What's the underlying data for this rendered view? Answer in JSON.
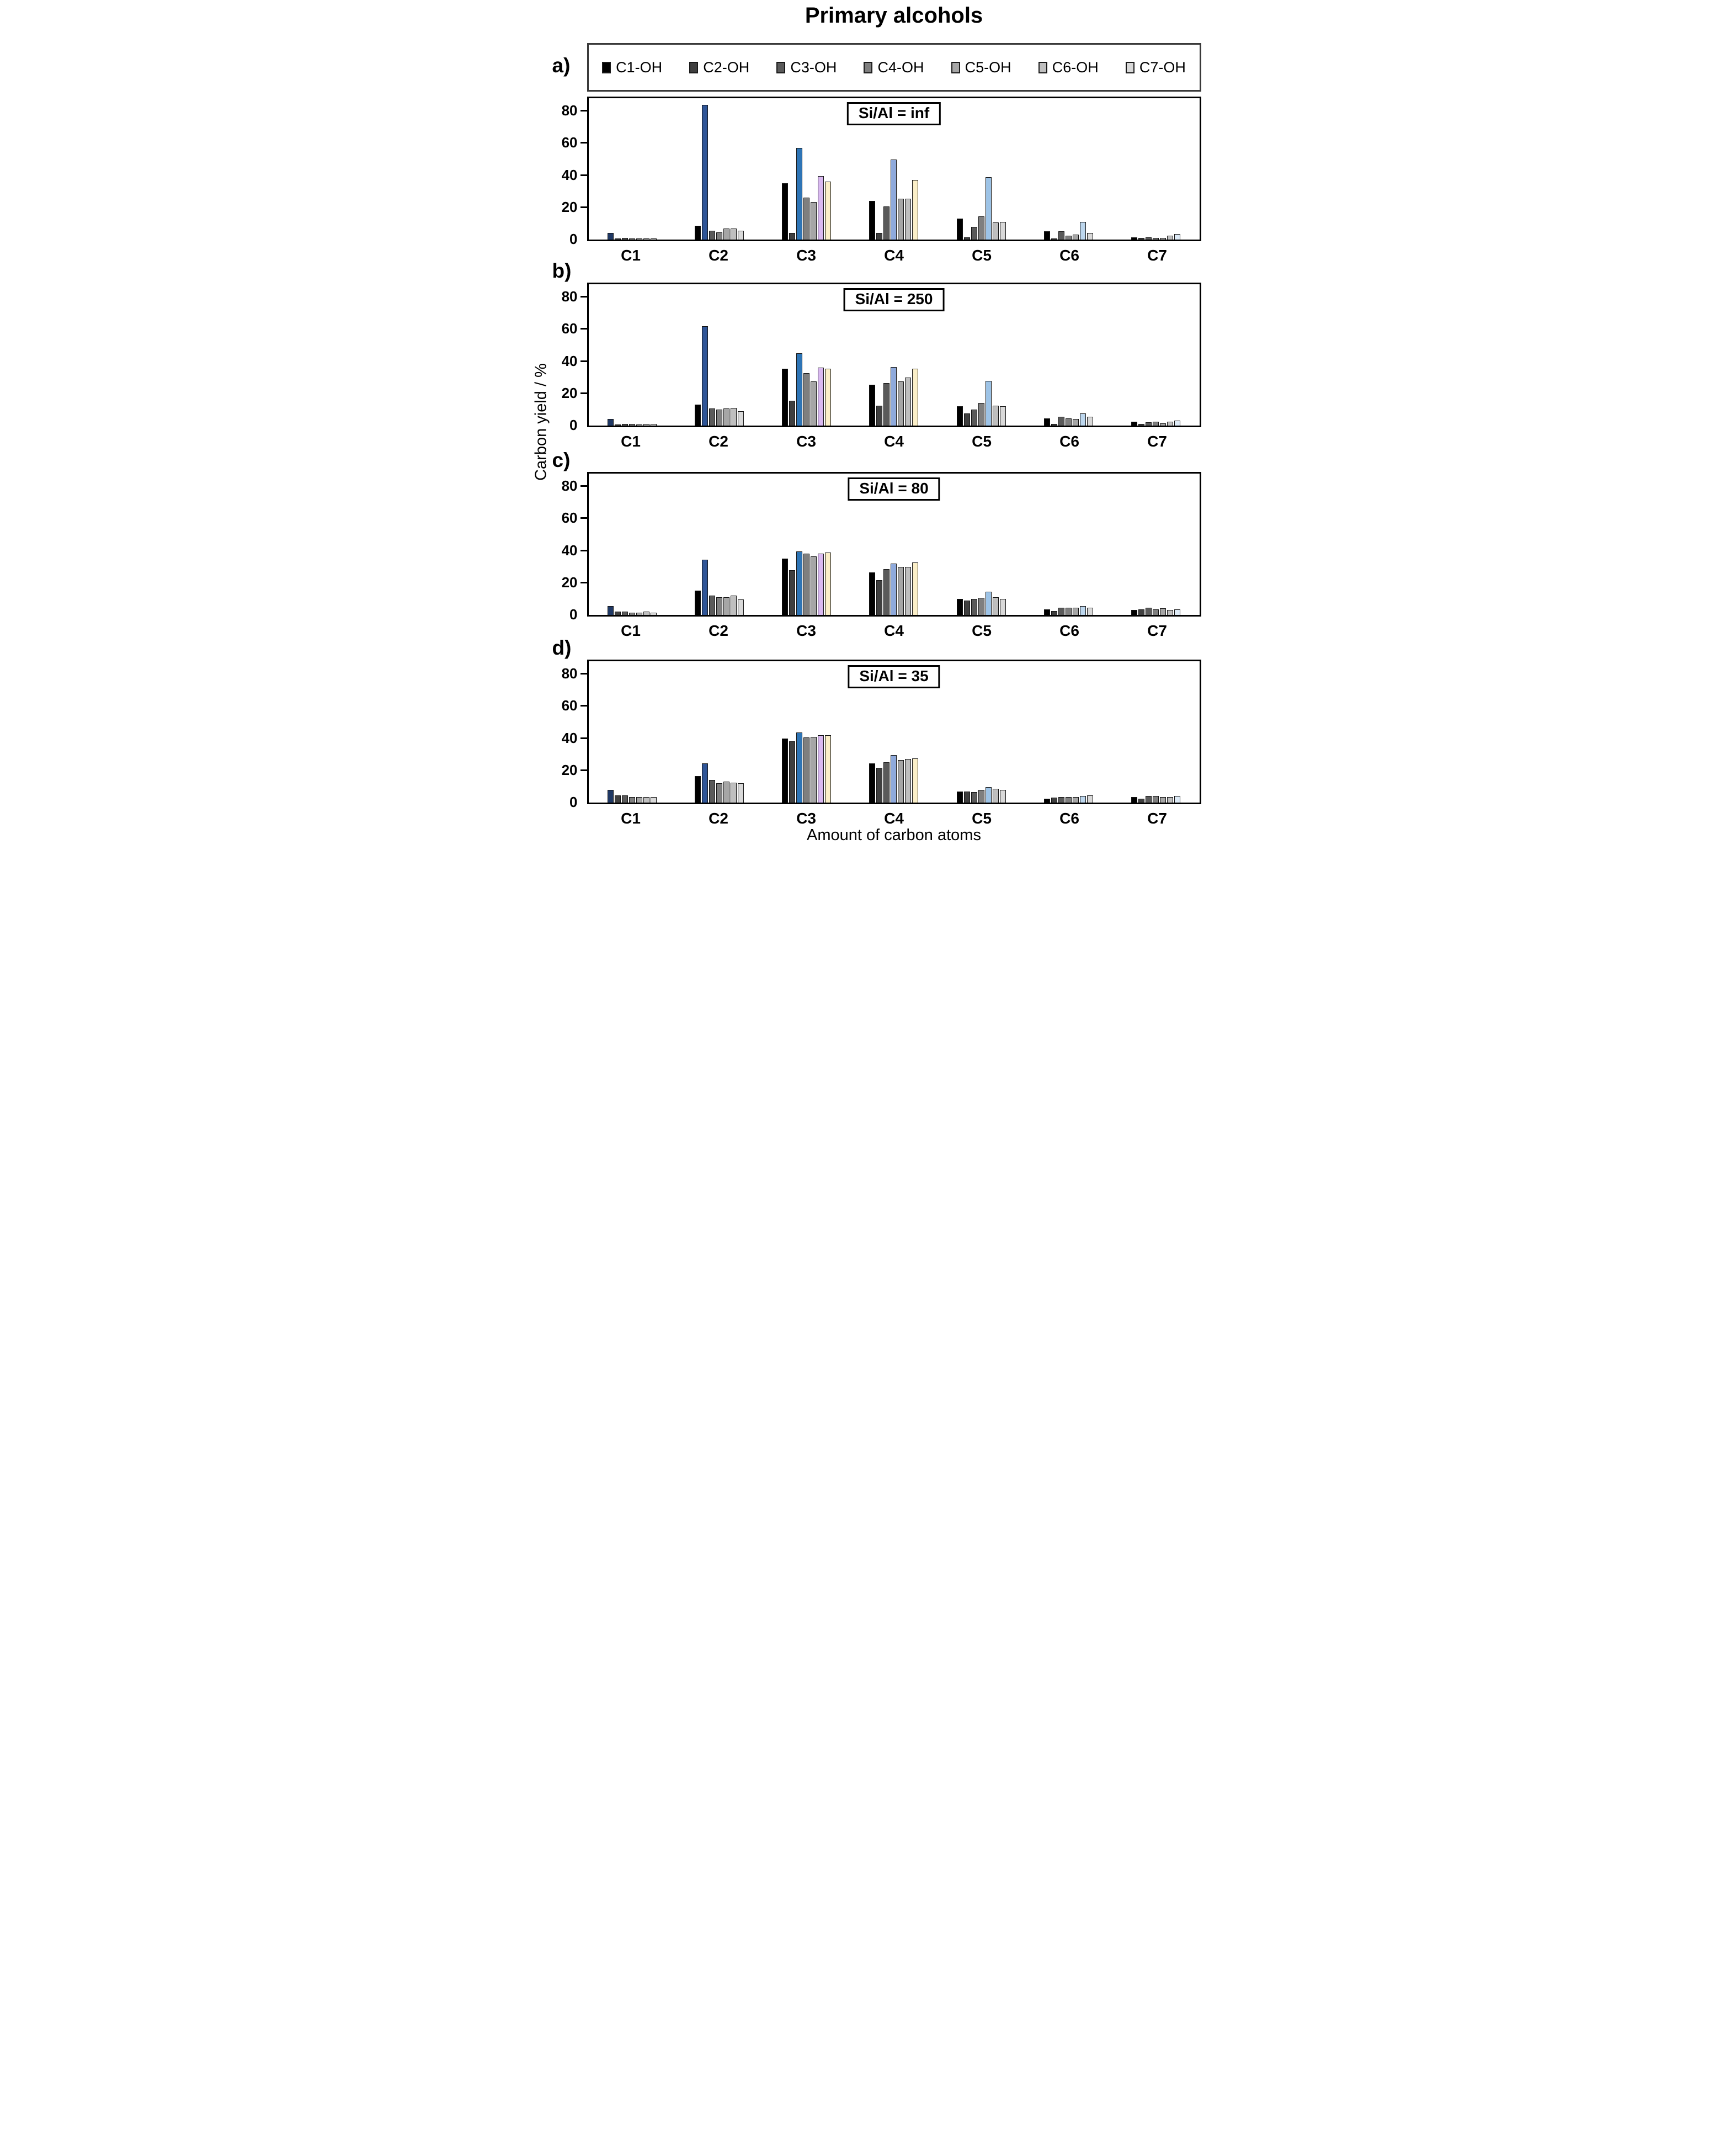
{
  "figure": {
    "title": "Primary alcohols",
    "x_axis_label": "Amount of carbon atoms",
    "y_axis_label": "Carbon yield / %"
  },
  "legend": {
    "entries": [
      {
        "label": "C1-OH",
        "color": "#000000"
      },
      {
        "label": "C2-OH",
        "color": "#3f3f3f"
      },
      {
        "label": "C3-OH",
        "color": "#5a5a5a"
      },
      {
        "label": "C4-OH",
        "color": "#7f7f7f"
      },
      {
        "label": "C5-OH",
        "color": "#a6a6a6"
      },
      {
        "label": "C6-OH",
        "color": "#bfbfbf"
      },
      {
        "label": "C7-OH",
        "color": "#d9d9d9"
      }
    ]
  },
  "chart_data": {
    "type": "bar",
    "grouped": true,
    "grid": false,
    "legend_position": "top",
    "categories": [
      "C1",
      "C2",
      "C3",
      "C4",
      "C5",
      "C6",
      "C7"
    ],
    "series_names": [
      "C1-OH",
      "C2-OH",
      "C3-OH",
      "C4-OH",
      "C5-OH",
      "C6-OH",
      "C7-OH"
    ],
    "series_base_colors": [
      "#000000",
      "#3f3f3f",
      "#5a5a5a",
      "#7f7f7f",
      "#a6a6a6",
      "#bfbfbf",
      "#d9d9d9"
    ],
    "diagonal_highlight_colors": [
      "#1f3864",
      "#2f5597",
      "#2e75b6",
      "#8faadc",
      "#9dc3e6",
      "#bdd7ee",
      "#deebf7"
    ],
    "special_highlights": [
      {
        "series": "C6-OH",
        "series_index": 5,
        "category": "C3",
        "category_index": 2,
        "color": "#d9b9f0"
      },
      {
        "series": "C7-OH",
        "series_index": 6,
        "category": "C3",
        "category_index": 2,
        "color": "#fbefc8"
      },
      {
        "series": "C7-OH",
        "series_index": 6,
        "category": "C4",
        "category_index": 3,
        "color": "#fbefc8"
      }
    ],
    "ylabel": "Carbon yield / %",
    "xlabel": "Amount of carbon atoms",
    "ylim": [
      0,
      88
    ],
    "yticks": [
      0,
      20,
      40,
      60,
      80
    ],
    "panels": [
      {
        "letter": "a)",
        "title": "Si/Al = inf",
        "series": [
          {
            "name": "C1-OH",
            "values": [
              4,
              8.5,
              35,
              24,
              13,
              5,
              1.5
            ]
          },
          {
            "name": "C2-OH",
            "values": [
              0.4,
              84,
              4,
              4,
              1.5,
              0.4,
              1
            ]
          },
          {
            "name": "C3-OH",
            "values": [
              0.9,
              5.5,
              57,
              20.5,
              8,
              5,
              1.5
            ]
          },
          {
            "name": "C4-OH",
            "values": [
              0.6,
              4.5,
              26,
              50,
              14.5,
              2.5,
              1
            ]
          },
          {
            "name": "C5-OH",
            "values": [
              0.6,
              7,
              23.5,
              25.5,
              39,
              3,
              1
            ]
          },
          {
            "name": "C6-OH",
            "values": [
              0.7,
              7,
              39.5,
              25.5,
              10.5,
              11,
              2.5
            ]
          },
          {
            "name": "C7-OH",
            "values": [
              0.6,
              5.5,
              36,
              37,
              11,
              4,
              3.5
            ]
          }
        ]
      },
      {
        "letter": "b)",
        "title": "Si/Al = 250",
        "series": [
          {
            "name": "C1-OH",
            "values": [
              4,
              13,
              35.5,
              25.5,
              12,
              4.5,
              2.5
            ]
          },
          {
            "name": "C2-OH",
            "values": [
              0.8,
              62,
              15.5,
              12.5,
              7.5,
              1,
              1
            ]
          },
          {
            "name": "C3-OH",
            "values": [
              1,
              10.5,
              45,
              26.5,
              10,
              5.5,
              2
            ]
          },
          {
            "name": "C4-OH",
            "values": [
              0.9,
              10,
              32.5,
              36.5,
              14,
              4.5,
              2.5
            ]
          },
          {
            "name": "C5-OH",
            "values": [
              0.8,
              10.5,
              27.5,
              27.5,
              28,
              4,
              1.5
            ]
          },
          {
            "name": "C6-OH",
            "values": [
              1,
              11,
              36,
              30,
              12.5,
              7.5,
              2.5
            ]
          },
          {
            "name": "C7-OH",
            "values": [
              0.9,
              9,
              35.5,
              35.5,
              12,
              5.5,
              3
            ]
          }
        ]
      },
      {
        "letter": "c)",
        "title": "Si/Al = 80",
        "series": [
          {
            "name": "C1-OH",
            "values": [
              5.5,
              15,
              35,
              26.5,
              10,
              3.5,
              3
            ]
          },
          {
            "name": "C2-OH",
            "values": [
              2,
              34.5,
              28,
              21.5,
              9,
              2.5,
              3.5
            ]
          },
          {
            "name": "C3-OH",
            "values": [
              2,
              12,
              39.5,
              28.5,
              10,
              4.5,
              4.5
            ]
          },
          {
            "name": "C4-OH",
            "values": [
              1.5,
              11,
              38,
              32,
              10.5,
              4.5,
              3.5
            ]
          },
          {
            "name": "C5-OH",
            "values": [
              1.5,
              11,
              36.5,
              30,
              14.5,
              4.5,
              4
            ]
          },
          {
            "name": "C6-OH",
            "values": [
              2,
              12,
              38,
              30,
              11,
              5.5,
              3
            ]
          },
          {
            "name": "C7-OH",
            "values": [
              1.5,
              9.5,
              39,
              32.5,
              10,
              4.5,
              3.5
            ]
          }
        ]
      },
      {
        "letter": "d)",
        "title": "Si/Al = 35",
        "series": [
          {
            "name": "C1-OH",
            "values": [
              8,
              16.5,
              40,
              24.5,
              7,
              2.5,
              3.5
            ]
          },
          {
            "name": "C2-OH",
            "values": [
              4.5,
              24.5,
              38,
              21.5,
              7,
              3,
              2.5
            ]
          },
          {
            "name": "C3-OH",
            "values": [
              4.5,
              14,
              43.5,
              25,
              6.5,
              3.5,
              4
            ]
          },
          {
            "name": "C4-OH",
            "values": [
              3.5,
              12,
              40.5,
              29.5,
              8,
              3.5,
              4
            ]
          },
          {
            "name": "C5-OH",
            "values": [
              3.5,
              13,
              41,
              26.5,
              9.5,
              3.5,
              3.5
            ]
          },
          {
            "name": "C6-OH",
            "values": [
              3.5,
              12.5,
              42,
              27,
              8.5,
              4,
              3.5
            ]
          },
          {
            "name": "C7-OH",
            "values": [
              3.5,
              12,
              42,
              27.5,
              8,
              4.5,
              4
            ]
          }
        ]
      }
    ]
  }
}
